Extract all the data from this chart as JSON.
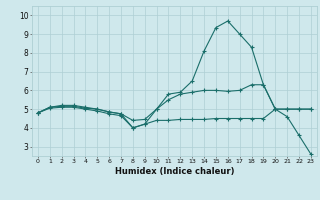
{
  "xlabel": "Humidex (Indice chaleur)",
  "xlim": [
    -0.5,
    23.5
  ],
  "ylim": [
    2.5,
    10.5
  ],
  "xticks": [
    0,
    1,
    2,
    3,
    4,
    5,
    6,
    7,
    8,
    9,
    10,
    11,
    12,
    13,
    14,
    15,
    16,
    17,
    18,
    19,
    20,
    21,
    22,
    23
  ],
  "yticks": [
    3,
    4,
    5,
    6,
    7,
    8,
    9,
    10
  ],
  "background_color": "#cfe8ec",
  "grid_color": "#aecfd4",
  "line_color": "#1a6e6a",
  "line1_x": [
    0,
    1,
    2,
    3,
    4,
    5,
    6,
    7,
    8,
    9,
    10,
    11,
    12,
    13,
    14,
    15,
    16,
    17,
    18,
    19,
    20,
    21,
    22,
    23
  ],
  "line1_y": [
    4.8,
    5.1,
    5.2,
    5.2,
    5.1,
    5.0,
    4.85,
    4.75,
    4.0,
    4.2,
    5.0,
    5.8,
    5.9,
    6.5,
    8.1,
    9.35,
    9.7,
    9.0,
    8.3,
    6.3,
    5.0,
    4.6,
    3.6,
    2.6
  ],
  "line2_x": [
    0,
    1,
    2,
    3,
    4,
    5,
    6,
    7,
    8,
    9,
    10,
    11,
    12,
    13,
    14,
    15,
    16,
    17,
    18,
    19,
    20,
    21,
    22,
    23
  ],
  "line2_y": [
    4.8,
    5.1,
    5.15,
    5.15,
    5.05,
    5.0,
    4.85,
    4.75,
    4.4,
    4.45,
    5.0,
    5.5,
    5.8,
    5.9,
    6.0,
    6.0,
    5.95,
    6.0,
    6.3,
    6.3,
    5.0,
    5.0,
    5.0,
    5.0
  ],
  "line3_x": [
    0,
    1,
    2,
    3,
    4,
    5,
    6,
    7,
    8,
    9,
    10,
    11,
    12,
    13,
    14,
    15,
    16,
    17,
    18,
    19,
    20,
    21,
    22,
    23
  ],
  "line3_y": [
    4.8,
    5.05,
    5.1,
    5.1,
    5.0,
    4.9,
    4.75,
    4.65,
    4.0,
    4.2,
    4.4,
    4.4,
    4.45,
    4.45,
    4.45,
    4.5,
    4.5,
    4.5,
    4.5,
    4.5,
    5.0,
    5.0,
    5.0,
    5.0
  ]
}
